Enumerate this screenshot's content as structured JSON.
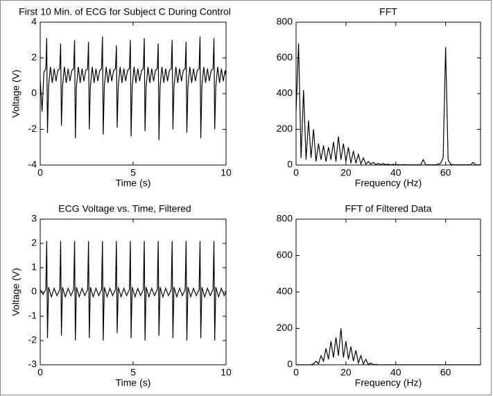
{
  "chart_data": [
    {
      "type": "line",
      "title": "First 10 Min. of ECG for Subject C During Control",
      "xlabel": "Time (s)",
      "ylabel": "Voltage (V)",
      "xlim": [
        0,
        10
      ],
      "xticks": [
        0,
        5,
        10
      ],
      "ylim": [
        -4,
        4
      ],
      "yticks": [
        -4,
        -2,
        0,
        2,
        4
      ],
      "color": "#000000",
      "x": [
        0,
        0.1,
        0.2,
        0.3,
        0.35,
        0.39,
        0.45,
        0.55,
        0.65,
        0.75,
        0.85,
        0.95,
        1.05,
        1.1,
        1.14,
        1.2,
        1.3,
        1.4,
        1.5,
        1.6,
        1.7,
        1.8,
        1.85,
        1.89,
        1.95,
        2.05,
        2.15,
        2.25,
        2.35,
        2.45,
        2.55,
        2.6,
        2.64,
        2.7,
        2.8,
        2.9,
        3.0,
        3.1,
        3.2,
        3.3,
        3.35,
        3.39,
        3.45,
        3.55,
        3.65,
        3.75,
        3.85,
        3.95,
        4.05,
        4.1,
        4.14,
        4.2,
        4.3,
        4.4,
        4.5,
        4.6,
        4.7,
        4.8,
        4.85,
        4.89,
        4.95,
        5.05,
        5.15,
        5.25,
        5.35,
        5.45,
        5.55,
        5.6,
        5.64,
        5.7,
        5.8,
        5.9,
        6.0,
        6.1,
        6.2,
        6.3,
        6.35,
        6.39,
        6.45,
        6.55,
        6.65,
        6.75,
        6.85,
        6.95,
        7.05,
        7.1,
        7.14,
        7.2,
        7.3,
        7.4,
        7.5,
        7.6,
        7.7,
        7.8,
        7.85,
        7.89,
        7.95,
        8.05,
        8.15,
        8.25,
        8.35,
        8.45,
        8.55,
        8.6,
        8.64,
        8.7,
        8.8,
        8.9,
        9.0,
        9.1,
        9.2,
        9.3,
        9.35,
        9.39,
        9.45,
        9.55,
        9.65,
        9.75,
        9.85,
        9.95,
        10
      ],
      "values": [
        0.8,
        -1.0,
        1.2,
        1.4,
        3.1,
        -2.2,
        0.4,
        1.5,
        0.6,
        1.4,
        0.7,
        1.3,
        1.4,
        2.8,
        -1.8,
        0.4,
        1.5,
        0.6,
        1.4,
        0.7,
        1.3,
        1.4,
        3.0,
        -2.5,
        0.4,
        1.5,
        0.6,
        1.4,
        0.7,
        1.3,
        1.4,
        2.9,
        -2.0,
        0.4,
        1.5,
        0.6,
        1.4,
        0.7,
        1.3,
        1.4,
        3.2,
        -2.3,
        0.4,
        1.5,
        0.6,
        1.4,
        0.7,
        1.3,
        1.4,
        2.7,
        -1.9,
        0.4,
        1.5,
        0.6,
        1.4,
        0.7,
        1.3,
        1.4,
        3.0,
        -2.4,
        0.4,
        1.5,
        0.6,
        1.4,
        0.7,
        1.3,
        1.4,
        3.1,
        -2.1,
        0.4,
        1.5,
        0.6,
        1.4,
        0.7,
        1.3,
        1.4,
        2.8,
        -2.6,
        0.4,
        1.5,
        0.6,
        1.4,
        0.7,
        1.3,
        1.4,
        3.0,
        -2.0,
        0.4,
        1.5,
        0.6,
        1.4,
        0.7,
        1.3,
        1.4,
        2.9,
        -2.2,
        0.4,
        1.5,
        0.6,
        1.4,
        0.7,
        1.3,
        1.4,
        3.2,
        -2.5,
        0.4,
        1.5,
        0.6,
        1.4,
        0.7,
        1.3,
        1.4,
        3.1,
        -2.0,
        0.4,
        1.5,
        0.6,
        1.4,
        0.7,
        1.3,
        1.0
      ]
    },
    {
      "type": "line",
      "title": "FFT",
      "xlabel": "Frequency (Hz)",
      "xlim": [
        0,
        74
      ],
      "xticks": [
        0,
        20,
        40,
        60
      ],
      "ylim": [
        0,
        800
      ],
      "yticks": [
        0,
        200,
        400,
        600,
        800
      ],
      "color": "#000000",
      "x": [
        0,
        1,
        2,
        3,
        4,
        5,
        6,
        7,
        8,
        9,
        10,
        11,
        12,
        13,
        14,
        15,
        16,
        17,
        18,
        19,
        20,
        21,
        22,
        23,
        24,
        25,
        26,
        27,
        28,
        29,
        30,
        31,
        32,
        33,
        34,
        35,
        36,
        37,
        38,
        39,
        40,
        41,
        42,
        43,
        44,
        45,
        46,
        47,
        48,
        49,
        50,
        51,
        52,
        53,
        54,
        55,
        56,
        57,
        58,
        59,
        60,
        61,
        62,
        63,
        64,
        65,
        66,
        67,
        68,
        69,
        70,
        71,
        72,
        73,
        74
      ],
      "values": [
        300,
        680,
        40,
        420,
        30,
        250,
        40,
        200,
        20,
        120,
        30,
        110,
        20,
        100,
        30,
        130,
        20,
        160,
        30,
        120,
        20,
        100,
        10,
        80,
        10,
        60,
        5,
        40,
        5,
        20,
        5,
        15,
        2,
        10,
        2,
        8,
        2,
        5,
        1,
        4,
        1,
        3,
        1,
        3,
        1,
        2,
        1,
        2,
        1,
        2,
        1,
        30,
        1,
        2,
        1,
        2,
        1,
        5,
        10,
        40,
        660,
        30,
        5,
        2,
        1,
        2,
        1,
        2,
        1,
        2,
        1,
        15,
        1,
        2,
        1
      ]
    },
    {
      "type": "line",
      "title": "ECG Voltage vs. Time, Filtered",
      "xlabel": "Time (s)",
      "ylabel": "Voltage (V)",
      "xlim": [
        0,
        10
      ],
      "xticks": [
        0,
        5,
        10
      ],
      "ylim": [
        -3,
        3
      ],
      "yticks": [
        -3,
        -2,
        -1,
        0,
        1,
        2,
        3
      ],
      "color": "#000000",
      "x": [
        0,
        0.15,
        0.3,
        0.35,
        0.39,
        0.45,
        0.6,
        0.75,
        0.9,
        1.05,
        1.1,
        1.14,
        1.2,
        1.35,
        1.5,
        1.65,
        1.8,
        1.85,
        1.89,
        1.95,
        2.1,
        2.25,
        2.4,
        2.55,
        2.6,
        2.64,
        2.7,
        2.85,
        3.0,
        3.15,
        3.3,
        3.35,
        3.39,
        3.45,
        3.6,
        3.75,
        3.9,
        4.05,
        4.1,
        4.14,
        4.2,
        4.35,
        4.5,
        4.65,
        4.8,
        4.85,
        4.89,
        4.95,
        5.1,
        5.25,
        5.4,
        5.55,
        5.6,
        5.64,
        5.7,
        5.85,
        6.0,
        6.15,
        6.3,
        6.35,
        6.39,
        6.45,
        6.6,
        6.75,
        6.9,
        7.05,
        7.1,
        7.14,
        7.2,
        7.35,
        7.5,
        7.65,
        7.8,
        7.85,
        7.89,
        7.95,
        8.1,
        8.25,
        8.4,
        8.55,
        8.6,
        8.64,
        8.7,
        8.85,
        9.0,
        9.15,
        9.3,
        9.35,
        9.39,
        9.45,
        9.6,
        9.75,
        9.9,
        10
      ],
      "values": [
        0.1,
        -0.1,
        0.1,
        2.1,
        -1.9,
        0.2,
        -0.2,
        0.15,
        -0.15,
        0.1,
        2.1,
        -1.8,
        0.2,
        -0.2,
        0.15,
        -0.15,
        0.1,
        2.1,
        -2.0,
        0.2,
        -0.2,
        0.15,
        -0.15,
        0.1,
        2.1,
        -1.9,
        0.2,
        -0.2,
        0.15,
        -0.15,
        0.1,
        2.1,
        -2.0,
        0.2,
        -0.2,
        0.15,
        -0.15,
        0.1,
        2.1,
        -1.7,
        0.2,
        -0.2,
        0.15,
        -0.15,
        0.1,
        2.1,
        -1.9,
        0.2,
        -0.2,
        0.15,
        -0.15,
        0.1,
        2.1,
        -2.0,
        0.2,
        -0.2,
        0.15,
        -0.15,
        0.1,
        2.1,
        -1.8,
        0.2,
        -0.2,
        0.15,
        -0.15,
        0.1,
        2.1,
        -1.9,
        0.2,
        -0.2,
        0.15,
        -0.15,
        0.1,
        2.1,
        -2.0,
        0.2,
        -0.2,
        0.15,
        -0.15,
        0.1,
        2.1,
        -1.9,
        0.2,
        -0.2,
        0.15,
        -0.15,
        0.1,
        2.1,
        -2.0,
        0.2,
        -0.2,
        0.15,
        -0.15,
        0
      ]
    },
    {
      "type": "line",
      "title": "FFT of Filtered Data",
      "xlabel": "Frequency (Hz)",
      "xlim": [
        0,
        74
      ],
      "xticks": [
        0,
        20,
        40,
        60
      ],
      "ylim": [
        0,
        800
      ],
      "yticks": [
        0,
        200,
        400,
        600,
        800
      ],
      "color": "#000000",
      "x": [
        0,
        6,
        7,
        8,
        9,
        10,
        11,
        12,
        13,
        14,
        15,
        16,
        17,
        18,
        19,
        20,
        21,
        22,
        23,
        24,
        25,
        26,
        27,
        28,
        29,
        30,
        31,
        32,
        33,
        34,
        74
      ],
      "values": [
        0,
        0,
        5,
        20,
        5,
        50,
        20,
        90,
        30,
        130,
        40,
        150,
        50,
        200,
        40,
        130,
        30,
        100,
        20,
        80,
        10,
        50,
        5,
        30,
        2,
        10,
        1,
        2,
        0,
        0,
        0
      ]
    }
  ]
}
